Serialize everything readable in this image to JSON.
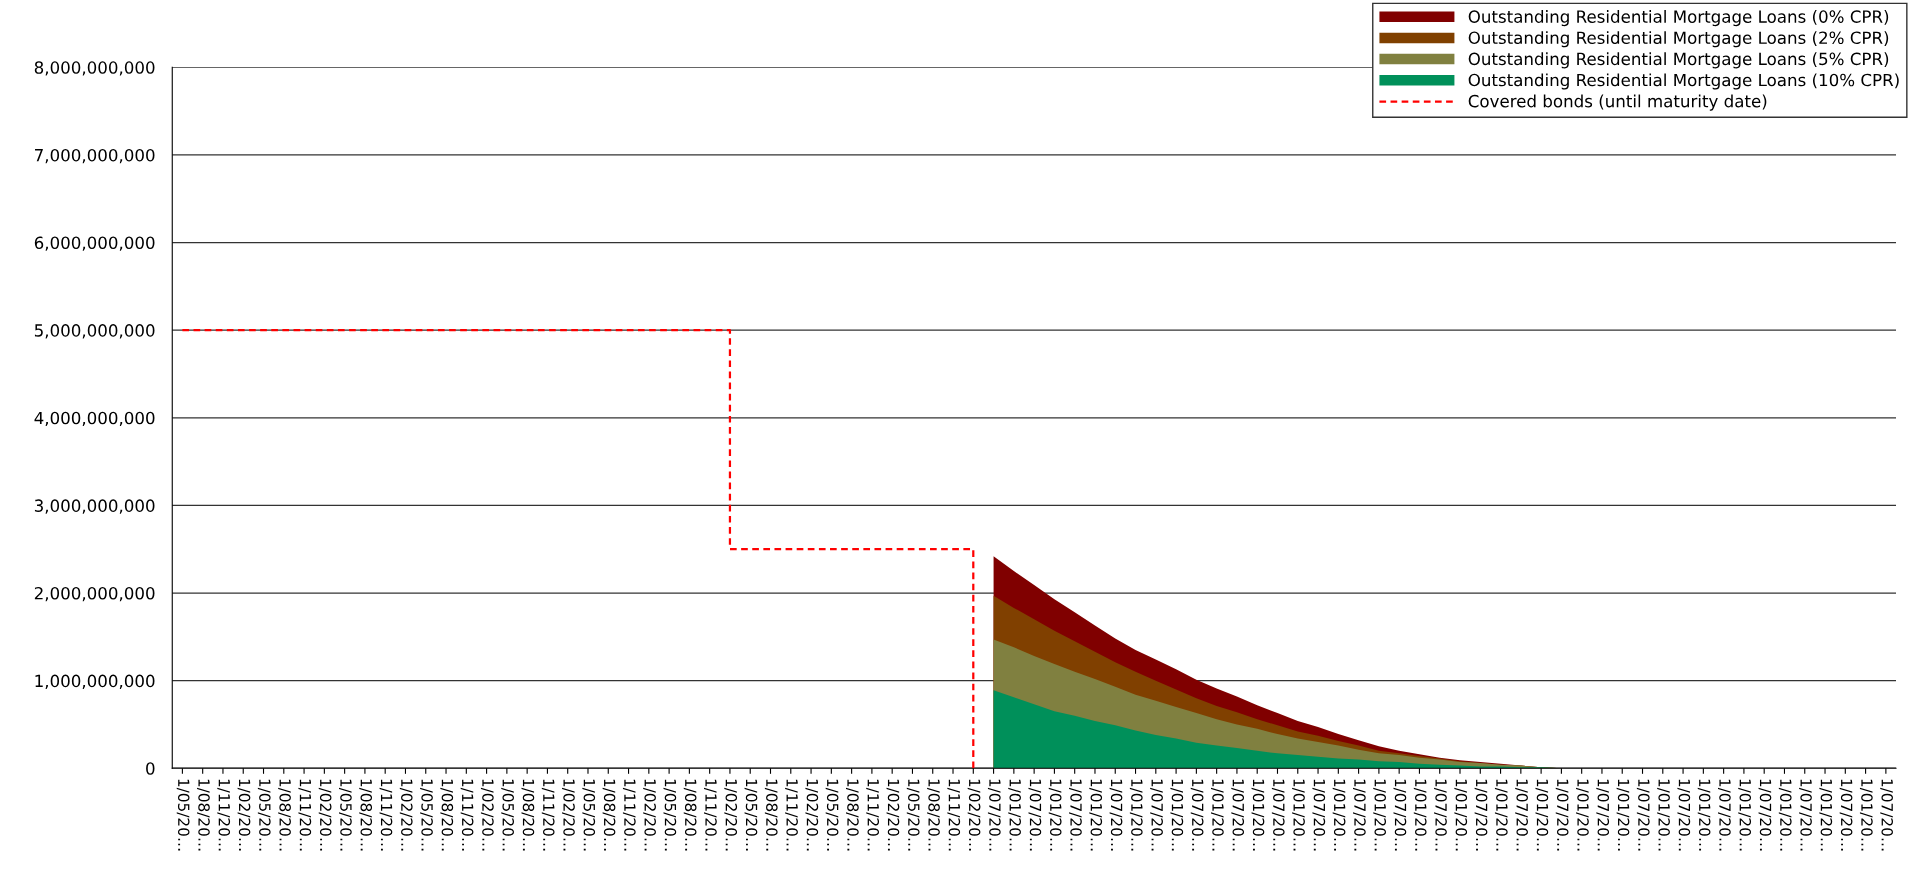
{
  "chart_data": {
    "type": "area",
    "categories": [
      "1/05/20…",
      "1/08/20…",
      "1/11/20…",
      "1/02/20…",
      "1/05/20…",
      "1/08/20…",
      "1/11/20…",
      "1/02/20…",
      "1/05/20…",
      "1/08/20…",
      "1/11/20…",
      "1/02/20…",
      "1/05/20…",
      "1/08/20…",
      "1/11/20…",
      "1/02/20…",
      "1/05/20…",
      "1/08/20…",
      "1/11/20…",
      "1/02/20…",
      "1/05/20…",
      "1/08/20…",
      "1/11/20…",
      "1/02/20…",
      "1/05/20…",
      "1/08/20…",
      "1/11/20…",
      "1/02/20…",
      "1/05/20…",
      "1/08/20…",
      "1/11/20…",
      "1/02/20…",
      "1/05/20…",
      "1/08/20…",
      "1/11/20…",
      "1/02/20…",
      "1/05/20…",
      "1/08/20…",
      "1/11/20…",
      "1/02/20…",
      "1/07/20…",
      "1/01/20…",
      "1/07/20…",
      "1/01/20…",
      "1/07/20…",
      "1/01/20…",
      "1/07/20…",
      "1/01/20…",
      "1/07/20…",
      "1/01/20…",
      "1/07/20…",
      "1/01/20…",
      "1/07/20…",
      "1/01/20…",
      "1/07/20…",
      "1/01/20…",
      "1/07/20…",
      "1/01/20…",
      "1/07/20…",
      "1/01/20…",
      "1/07/20…",
      "1/01/20…",
      "1/07/20…",
      "1/01/20…",
      "1/07/20…",
      "1/01/20…",
      "1/07/20…",
      "1/01/20…",
      "1/07/20…",
      "1/01/20…",
      "1/07/20…",
      "1/01/20…",
      "1/07/20…",
      "1/01/20…",
      "1/07/20…",
      "1/01/20…",
      "1/07/20…",
      "1/01/20…",
      "1/07/20…",
      "1/01/20…",
      "1/07/20…",
      "1/01/20…",
      "1/07/20…",
      "1/01/20…",
      "1/07/20…"
    ],
    "series": [
      {
        "name": "Outstanding Residential Mortgage Loans (0% CPR)",
        "color": "#800000",
        "values": [
          null,
          null,
          null,
          null,
          null,
          null,
          null,
          null,
          null,
          null,
          null,
          null,
          null,
          null,
          null,
          null,
          null,
          null,
          null,
          null,
          null,
          null,
          null,
          null,
          null,
          null,
          null,
          null,
          null,
          null,
          null,
          null,
          null,
          null,
          null,
          null,
          null,
          null,
          null,
          null,
          2420000000,
          2250000000,
          2090000000,
          1930000000,
          1780000000,
          1630000000,
          1480000000,
          1350000000,
          1240000000,
          1130000000,
          1010000000,
          910000000,
          820000000,
          720000000,
          630000000,
          540000000,
          470000000,
          390000000,
          320000000,
          250000000,
          200000000,
          160000000,
          120000000,
          90000000,
          70000000,
          50000000,
          30000000,
          10000000,
          0,
          null,
          null,
          null,
          null,
          null,
          null,
          null,
          null,
          null,
          null,
          null,
          null,
          null,
          null,
          null,
          null
        ]
      },
      {
        "name": "Outstanding Residential Mortgage Loans (2% CPR)",
        "color": "#804000",
        "values": [
          null,
          null,
          null,
          null,
          null,
          null,
          null,
          null,
          null,
          null,
          null,
          null,
          null,
          null,
          null,
          null,
          null,
          null,
          null,
          null,
          null,
          null,
          null,
          null,
          null,
          null,
          null,
          null,
          null,
          null,
          null,
          null,
          null,
          null,
          null,
          null,
          null,
          null,
          null,
          null,
          1970000000,
          1830000000,
          1700000000,
          1570000000,
          1450000000,
          1330000000,
          1210000000,
          1100000000,
          1000000000,
          900000000,
          800000000,
          710000000,
          640000000,
          560000000,
          490000000,
          420000000,
          370000000,
          310000000,
          260000000,
          200000000,
          170000000,
          140000000,
          110000000,
          80000000,
          60000000,
          40000000,
          30000000,
          10000000,
          0,
          null,
          null,
          null,
          null,
          null,
          null,
          null,
          null,
          null,
          null,
          null,
          null,
          null,
          null,
          null,
          null
        ]
      },
      {
        "name": "Outstanding Residential Mortgage Loans (5% CPR)",
        "color": "#808040",
        "values": [
          null,
          null,
          null,
          null,
          null,
          null,
          null,
          null,
          null,
          null,
          null,
          null,
          null,
          null,
          null,
          null,
          null,
          null,
          null,
          null,
          null,
          null,
          null,
          null,
          null,
          null,
          null,
          null,
          null,
          null,
          null,
          null,
          null,
          null,
          null,
          null,
          null,
          null,
          null,
          null,
          1470000000,
          1380000000,
          1280000000,
          1190000000,
          1100000000,
          1020000000,
          930000000,
          840000000,
          770000000,
          700000000,
          630000000,
          560000000,
          500000000,
          450000000,
          390000000,
          340000000,
          300000000,
          260000000,
          210000000,
          170000000,
          150000000,
          120000000,
          100000000,
          70000000,
          60000000,
          40000000,
          30000000,
          10000000,
          0,
          null,
          null,
          null,
          null,
          null,
          null,
          null,
          null,
          null,
          null,
          null,
          null,
          null,
          null,
          null,
          null
        ]
      },
      {
        "name": "Outstanding Residential Mortgage Loans (10% CPR)",
        "color": "#00905a",
        "values": [
          null,
          null,
          null,
          null,
          null,
          null,
          null,
          null,
          null,
          null,
          null,
          null,
          null,
          null,
          null,
          null,
          null,
          null,
          null,
          null,
          null,
          null,
          null,
          null,
          null,
          null,
          null,
          null,
          null,
          null,
          null,
          null,
          null,
          null,
          null,
          null,
          null,
          null,
          null,
          null,
          890000000,
          810000000,
          730000000,
          650000000,
          600000000,
          540000000,
          490000000,
          430000000,
          380000000,
          340000000,
          290000000,
          260000000,
          230000000,
          200000000,
          170000000,
          150000000,
          130000000,
          110000000,
          100000000,
          80000000,
          70000000,
          50000000,
          40000000,
          30000000,
          20000000,
          20000000,
          10000000,
          10000000,
          0,
          null,
          null,
          null,
          null,
          null,
          null,
          null,
          null,
          null,
          null,
          null,
          null,
          null,
          null,
          null,
          null
        ]
      },
      {
        "name": "Covered bonds (until maturity date)",
        "color": "#ff0000",
        "type": "step",
        "line_style": "dashed",
        "values": [
          5000000000,
          5000000000,
          5000000000,
          5000000000,
          5000000000,
          5000000000,
          5000000000,
          5000000000,
          5000000000,
          5000000000,
          5000000000,
          5000000000,
          5000000000,
          5000000000,
          5000000000,
          5000000000,
          5000000000,
          5000000000,
          5000000000,
          5000000000,
          5000000000,
          5000000000,
          5000000000,
          5000000000,
          5000000000,
          5000000000,
          5000000000,
          2500000000,
          2500000000,
          2500000000,
          2500000000,
          2500000000,
          2500000000,
          2500000000,
          2500000000,
          2500000000,
          2500000000,
          2500000000,
          2500000000,
          0,
          null,
          null,
          null,
          null,
          null,
          null,
          null,
          null,
          null,
          null,
          null,
          null,
          null,
          null,
          null,
          null,
          null,
          null,
          null,
          null,
          null,
          null,
          null,
          null,
          null,
          null,
          null,
          null,
          null,
          null,
          null,
          null,
          null,
          null,
          null,
          null,
          null,
          null,
          null,
          null,
          null,
          null,
          null,
          null,
          null
        ]
      }
    ],
    "ylim": [
      0,
      8000000000
    ],
    "yticks": [
      {
        "value": 0,
        "label": "0"
      },
      {
        "value": 1000000000,
        "label": "1,000,000,000"
      },
      {
        "value": 2000000000,
        "label": "2,000,000,000"
      },
      {
        "value": 3000000000,
        "label": "3,000,000,000"
      },
      {
        "value": 4000000000,
        "label": "4,000,000,000"
      },
      {
        "value": 5000000000,
        "label": "5,000,000,000"
      },
      {
        "value": 6000000000,
        "label": "6,000,000,000"
      },
      {
        "value": 7000000000,
        "label": "7,000,000,000"
      },
      {
        "value": 8000000000,
        "label": "8,000,000,000"
      }
    ],
    "grid": "y",
    "legend": "top right"
  }
}
